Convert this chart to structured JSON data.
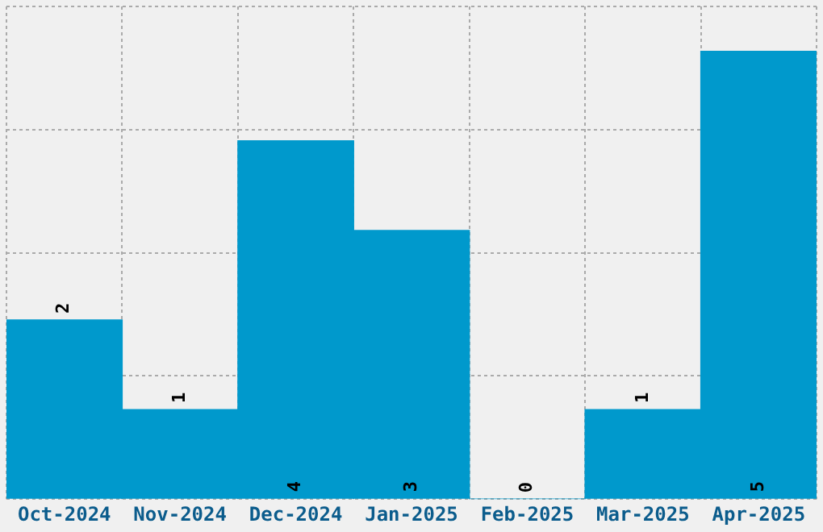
{
  "chart_data": {
    "type": "bar",
    "categories": [
      "Oct-2024",
      "Nov-2024",
      "Dec-2024",
      "Jan-2025",
      "Feb-2025",
      "Mar-2025",
      "Apr-2025"
    ],
    "values": [
      2,
      1,
      4,
      3,
      0,
      1,
      5
    ],
    "color": "#0099cc",
    "data_labels": true,
    "grid": true,
    "tick_labels": "x",
    "ylim": [
      0,
      5.5
    ],
    "yticks": [
      {
        "value": 0,
        "label": null
      },
      {
        "value": 1.375,
        "label": null
      },
      {
        "value": 2.75,
        "label": null
      },
      {
        "value": 4.125,
        "label": null
      },
      {
        "value": 5.5,
        "label": null
      }
    ]
  }
}
